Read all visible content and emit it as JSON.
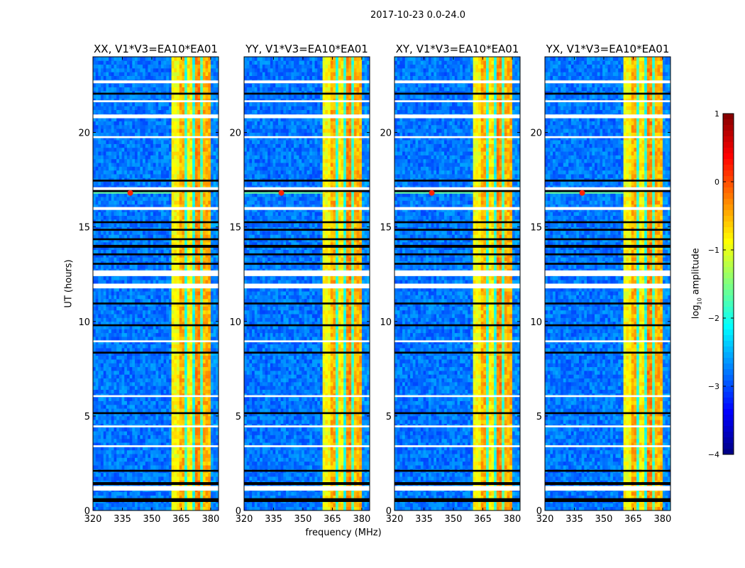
{
  "chart_data": {
    "type": "heatmap",
    "title": "2017-10-23 0.0-24.0",
    "xlabel": "frequency (MHz)",
    "ylabel": "UT (hours)",
    "xlim": [
      320,
      384
    ],
    "ylim": [
      0,
      24
    ],
    "xticks": [
      320,
      335,
      350,
      365,
      380
    ],
    "yticks": [
      0,
      5,
      10,
      15,
      20
    ],
    "colorbar": {
      "label_main": "log",
      "label_sub": "10",
      "label_rest": " amplitude",
      "range": [
        -4,
        1
      ],
      "ticks": [
        1,
        0,
        -1,
        -2,
        -3,
        -4
      ],
      "tick_labels": [
        "1",
        "0",
        "−1",
        "−2",
        "−3",
        "−4"
      ],
      "colormap": "jet"
    },
    "panels": [
      {
        "title": "XX, V1*V3=EA10*EA01",
        "band_offset": 0
      },
      {
        "title": "YY, V1*V3=EA10*EA01",
        "band_offset": 0
      },
      {
        "title": "XY, V1*V3=EA10*EA01",
        "band_offset": 0
      },
      {
        "title": "YX, V1*V3=EA10*EA01",
        "band_offset": 0
      }
    ],
    "background_log_amp": -2.8,
    "frequency_blocks": [
      {
        "from": 360,
        "to": 363.4,
        "log_amp": -0.9
      },
      {
        "from": 363.4,
        "to": 364,
        "log_amp": -2.0
      },
      {
        "from": 364,
        "to": 367,
        "log_amp": -0.5
      },
      {
        "from": 367,
        "to": 367.8,
        "log_amp": -1.9
      },
      {
        "from": 367.8,
        "to": 371,
        "log_amp": -0.8
      },
      {
        "from": 371,
        "to": 371.6,
        "log_amp": -2.0
      },
      {
        "from": 371.6,
        "to": 375,
        "log_amp": -0.3
      },
      {
        "from": 375,
        "to": 375.6,
        "log_amp": -1.8
      },
      {
        "from": 375.6,
        "to": 379.5,
        "log_amp": -0.5
      },
      {
        "from": 379.5,
        "to": 380.6,
        "log_amp": -1.0
      },
      {
        "from": 380.6,
        "to": 384,
        "log_amp": -2.7
      }
    ],
    "flagged_hours_white": [
      [
        1.05,
        1.3
      ],
      [
        11.75,
        12.0
      ],
      [
        12.4,
        12.7
      ],
      [
        15.9,
        16.05
      ],
      [
        16.95,
        17.1
      ],
      [
        20.75,
        20.95
      ],
      [
        22.6,
        22.75
      ],
      [
        8.9,
        9.0
      ],
      [
        4.4,
        4.5
      ],
      [
        3.35,
        3.45
      ],
      [
        6.0,
        6.1
      ],
      [
        19.7,
        19.8
      ],
      [
        21.6,
        21.7
      ]
    ],
    "flagged_hours_black": [
      [
        0.45,
        0.65
      ],
      [
        1.35,
        1.5
      ],
      [
        2.05,
        2.15
      ],
      [
        5.1,
        5.2
      ],
      [
        8.3,
        8.4
      ],
      [
        9.75,
        9.85
      ],
      [
        10.9,
        11.0
      ],
      [
        13.0,
        13.1
      ],
      [
        13.5,
        13.6
      ],
      [
        13.9,
        14.05
      ],
      [
        14.3,
        14.4
      ],
      [
        14.8,
        14.9
      ],
      [
        15.2,
        15.3
      ],
      [
        16.85,
        16.95
      ],
      [
        17.4,
        17.5
      ],
      [
        22.0,
        22.1
      ]
    ],
    "rfi_event": {
      "hour": 16.8,
      "freq_mhz": 339,
      "log_amp": 0.2
    }
  }
}
